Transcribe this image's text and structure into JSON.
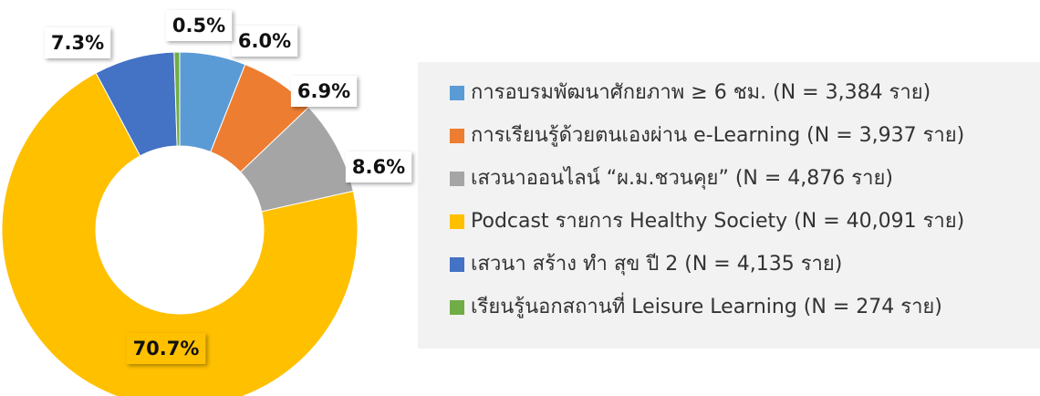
{
  "chart_data": {
    "type": "donut",
    "series": [
      {
        "name": "การอบรมพัฒนาศักยภาพ ≥ 6 ชม. (N = 3,384 ราย)",
        "color": "#5b9bd5",
        "values": [
          6.0
        ]
      },
      {
        "name": "การเรียนรู้ด้วยตนเองผ่าน e-Learning (N = 3,937 ราย)",
        "color": "#ed7d31",
        "values": [
          6.9
        ]
      },
      {
        "name": "เสวนาออนไลน์ “ผ.ม.ชวนคุย” (N = 4,876 ราย)",
        "color": "#a5a5a5",
        "values": [
          8.6
        ]
      },
      {
        "name": "Podcast รายการ Healthy Society (N = 40,091 ราย)",
        "color": "#ffc000",
        "values": [
          70.7
        ]
      },
      {
        "name": "เสวนา สร้าง ทำ สุข ปี 2 (N = 4,135 ราย)",
        "color": "#4472c4",
        "values": [
          7.3
        ]
      },
      {
        "name": "เรียนรู้นอกสถานที่ Leisure Learning (N = 274 ราย)",
        "color": "#70ad47",
        "values": [
          0.5
        ]
      }
    ],
    "value_labels": [
      "6.0%",
      "6.9%",
      "8.6%",
      "70.7%",
      "7.3%",
      "0.5%"
    ],
    "legend": "right"
  }
}
